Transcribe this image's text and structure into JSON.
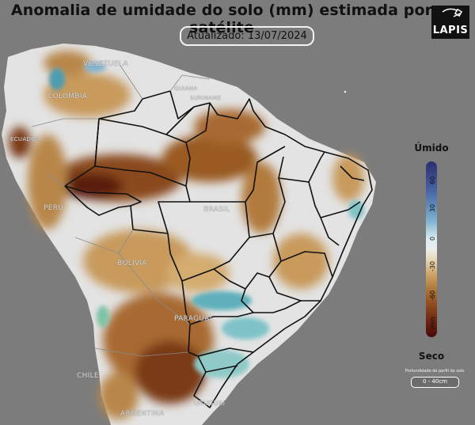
{
  "title": "Anomalia de umidade do solo (mm) estimada por satélite",
  "updated": "Atualizado: 13/07/2024",
  "logo": {
    "text": "LAPIS"
  },
  "legend": {
    "top_label": "Úmido",
    "bottom_label": "Seco",
    "ticks": [
      "60",
      "30",
      "0",
      "-30",
      "-60",
      "mm"
    ],
    "depth_title": "Profundidade do perfil do solo",
    "depth_value": "0 - 40cm"
  },
  "places": {
    "venezuela": "VENEZUELA",
    "colombia": "COLOMBIA",
    "ecuador": "ECUADOR",
    "peru": "PERU",
    "bolivia": "BOLIVIA",
    "brasil": "BRASIL",
    "paraguai": "PARAGUAI",
    "chile": "CHILE",
    "argentina": "ARGENTINA",
    "uruguai": "URUGUAI",
    "suriname": "SURINAME",
    "guiana": "GUIANA"
  },
  "colors": {
    "background": "#7c7c7c",
    "wet": "#2a2d6e",
    "neutral": "#ededed",
    "dry": "#6a2010"
  }
}
